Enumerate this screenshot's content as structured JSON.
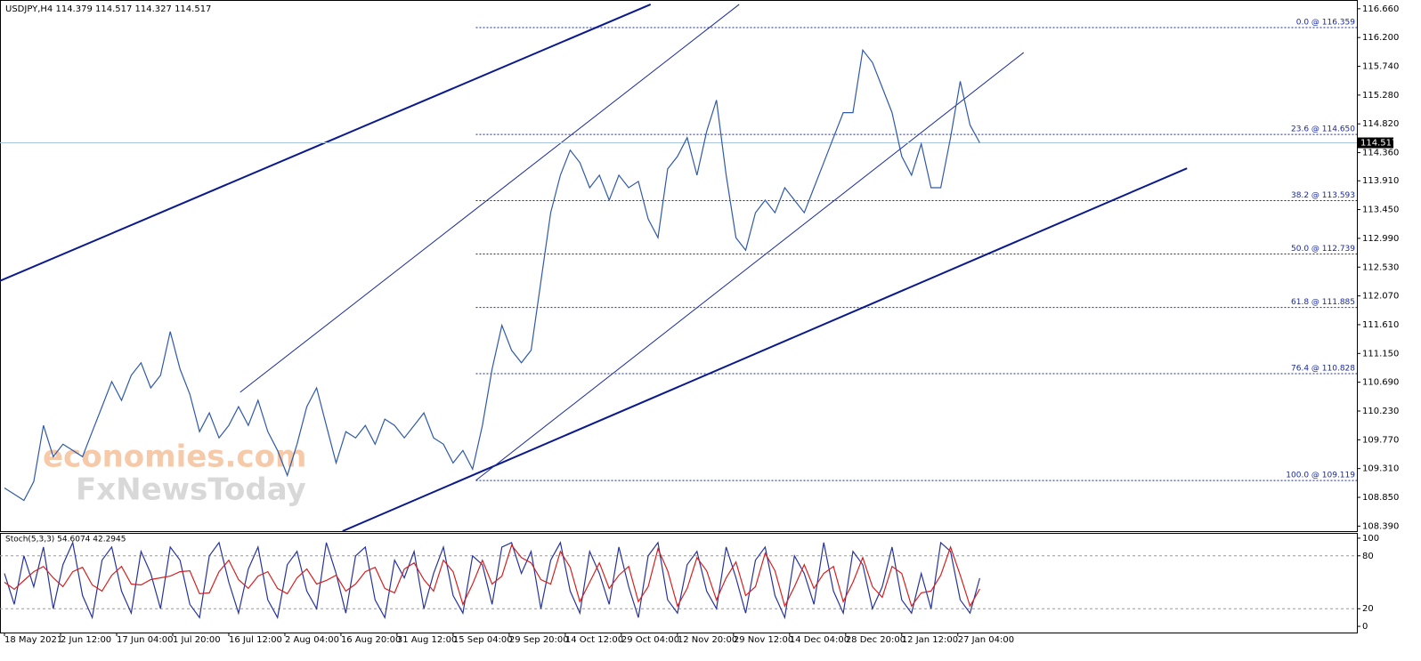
{
  "chart_data": [
    {
      "type": "line",
      "title": "USDJPY,H4  114.379 114.517 114.327 114.517",
      "watermark": [
        "economies.com",
        "FxNewsToday"
      ],
      "x": [
        0,
        12,
        24,
        36,
        48,
        60,
        72,
        84,
        96,
        108,
        120,
        132,
        144,
        156,
        168,
        180,
        192,
        204,
        216,
        228,
        240,
        252,
        264,
        276,
        288,
        300,
        312,
        324,
        336,
        348,
        360,
        372,
        384,
        396,
        408,
        420,
        432,
        444,
        456,
        468,
        480,
        492,
        504,
        516,
        528,
        540,
        552,
        564,
        576,
        588,
        600,
        612,
        624,
        636,
        648,
        660,
        672,
        684,
        696,
        708,
        720,
        732,
        744,
        756,
        768,
        780,
        792,
        804,
        816,
        828,
        840,
        852,
        864,
        876,
        888,
        900,
        912,
        924,
        936,
        948,
        960,
        972,
        984,
        996,
        1008,
        1020,
        1032,
        1044,
        1056,
        1068,
        1080,
        1092,
        1104,
        1116,
        1128,
        1140,
        1152,
        1164,
        1176,
        1188,
        1200
      ],
      "series": [
        {
          "color": "#2f5aa8",
          "values": [
            109.0,
            108.9,
            108.8,
            109.1,
            110.0,
            109.5,
            109.7,
            109.6,
            109.5,
            109.9,
            110.3,
            110.7,
            110.4,
            110.8,
            111.0,
            110.6,
            110.8,
            111.5,
            110.9,
            110.5,
            109.9,
            110.2,
            109.8,
            110.0,
            110.3,
            110.0,
            110.4,
            109.9,
            109.6,
            109.2,
            109.7,
            110.3,
            110.6,
            110.0,
            109.4,
            109.9,
            109.8,
            110.0,
            109.7,
            110.1,
            110.0,
            109.8,
            110.0,
            110.2,
            109.8,
            109.7,
            109.4,
            109.6,
            109.3,
            110.0,
            110.9,
            111.6,
            111.2,
            111.0,
            111.2,
            112.3,
            113.4,
            114.0,
            114.4,
            114.2,
            113.8,
            114.0,
            113.6,
            114.0,
            113.8,
            113.9,
            113.3,
            113.0,
            114.1,
            114.3,
            114.6,
            114.0,
            114.7,
            115.2,
            114.0,
            113.0,
            112.8,
            113.4,
            113.6,
            113.4,
            113.8,
            113.6,
            113.4,
            113.8,
            114.2,
            114.6,
            115.0,
            115.0,
            116.0,
            115.8,
            115.4,
            115.0,
            114.3,
            114.0,
            114.5,
            113.8,
            113.8,
            114.6,
            115.5,
            114.8,
            114.517
          ]
        }
      ],
      "last_price": 114.517,
      "fib_levels": [
        {
          "value": 116.359,
          "label": "0.0 @ 116.359"
        },
        {
          "value": 114.65,
          "label": "23.6 @ 114.650"
        },
        {
          "value": 113.593,
          "label": "38.2 @ 113.593"
        },
        {
          "value": 112.739,
          "label": "50.0 @ 112.739"
        },
        {
          "value": 111.885,
          "label": "61.8 @ 111.885"
        },
        {
          "value": 110.828,
          "label": "76.4 @ 110.828"
        },
        {
          "value": 109.119,
          "label": "100.0 @ 109.119"
        }
      ],
      "trendlines": [
        {
          "x": [
            -5.5,
            795
          ],
          "y": [
            112.31,
            116.73
          ],
          "width": 2,
          "color": "#0a1a8c"
        },
        {
          "x": [
            416,
            1455
          ],
          "y": [
            108.31,
            114.11
          ],
          "width": 2,
          "color": "#0a1a8c"
        },
        {
          "x": [
            290,
            904
          ],
          "y": [
            110.53,
            116.73
          ],
          "width": 1,
          "color": "#1a2a9c"
        },
        {
          "x": [
            580,
            1254
          ],
          "y": [
            109.12,
            115.96
          ],
          "width": 1,
          "color": "#1a2a9c"
        }
      ],
      "xlim": [
        -5.5,
        1664
      ],
      "ylim": [
        108.31,
        116.8
      ],
      "yticks": [
        {
          "value": 116.66,
          "label": "116.660"
        },
        {
          "value": 116.2,
          "label": "116.200"
        },
        {
          "value": 115.74,
          "label": "115.740"
        },
        {
          "value": 115.28,
          "label": "115.280"
        },
        {
          "value": 114.82,
          "label": "114.820"
        },
        {
          "value": 114.36,
          "label": "114.360"
        },
        {
          "value": 113.91,
          "label": "113.910"
        },
        {
          "value": 113.45,
          "label": "113.450"
        },
        {
          "value": 112.99,
          "label": "112.990"
        },
        {
          "value": 112.53,
          "label": "112.530"
        },
        {
          "value": 112.07,
          "label": "112.070"
        },
        {
          "value": 111.61,
          "label": "111.610"
        },
        {
          "value": 111.15,
          "label": "111.150"
        },
        {
          "value": 110.69,
          "label": "110.690"
        },
        {
          "value": 110.23,
          "label": "110.230"
        },
        {
          "value": 109.77,
          "label": "109.770"
        },
        {
          "value": 109.31,
          "label": "109.310"
        },
        {
          "value": 108.85,
          "label": "108.850"
        },
        {
          "value": 108.39,
          "label": "108.390"
        }
      ]
    },
    {
      "type": "line",
      "title": "Stoch(5,3,3) 54.6074 42.2945",
      "series": [
        {
          "color": "#27349a",
          "values": [
            60,
            25,
            80,
            45,
            90,
            20,
            70,
            95,
            35,
            10,
            75,
            90,
            40,
            15,
            85,
            60,
            20,
            90,
            75,
            25,
            10,
            80,
            95,
            50,
            15,
            65,
            90,
            30,
            10,
            70,
            85,
            40,
            20,
            95,
            60,
            15,
            80,
            90,
            30,
            10,
            75,
            55,
            85,
            20,
            60,
            90,
            35,
            15,
            80,
            70,
            25,
            90,
            95,
            60,
            85,
            20,
            75,
            95,
            40,
            15,
            85,
            60,
            25,
            90,
            45,
            10,
            80,
            95,
            30,
            15,
            70,
            85,
            40,
            20,
            90,
            55,
            15,
            75,
            90,
            35,
            10,
            80,
            60,
            25,
            95,
            40,
            15,
            85,
            70,
            20,
            45,
            90,
            30,
            15,
            60,
            20,
            95,
            85,
            30,
            15,
            54.6074
          ]
        },
        {
          "color": "#d62020",
          "values": [
            50,
            42,
            52,
            62,
            68,
            55,
            45,
            62,
            67,
            47,
            40,
            58,
            68,
            48,
            47,
            53,
            55,
            57,
            62,
            63,
            37,
            38,
            62,
            75,
            53,
            43,
            57,
            62,
            43,
            37,
            55,
            65,
            48,
            52,
            58,
            40,
            48,
            62,
            67,
            43,
            38,
            65,
            72,
            53,
            40,
            75,
            62,
            25,
            48,
            75,
            48,
            57,
            92,
            78,
            72,
            53,
            48,
            85,
            67,
            28,
            50,
            72,
            43,
            58,
            68,
            28,
            45,
            88,
            63,
            23,
            43,
            78,
            63,
            30,
            55,
            73,
            35,
            45,
            83,
            63,
            23,
            45,
            70,
            43,
            60,
            68,
            28,
            50,
            78,
            45,
            33,
            68,
            60,
            23,
            38,
            40,
            58,
            90,
            58,
            23,
            42.2945
          ]
        }
      ],
      "ylim": [
        -7,
        106
      ],
      "yticks": [
        100,
        80,
        20,
        0
      ],
      "levels": [
        80,
        20
      ],
      "xticks": [
        {
          "value": 0,
          "label": "18 May 2021"
        },
        {
          "value": 69,
          "label": "2 Jun 12:00"
        },
        {
          "value": 138,
          "label": "17 Jun 04:00"
        },
        {
          "value": 207,
          "label": "1 Jul 20:00"
        },
        {
          "value": 276,
          "label": "16 Jul 12:00"
        },
        {
          "value": 345,
          "label": "2 Aug 04:00"
        },
        {
          "value": 414,
          "label": "16 Aug 20:00"
        },
        {
          "value": 483,
          "label": "31 Aug 12:00"
        },
        {
          "value": 552,
          "label": "15 Sep 04:00"
        },
        {
          "value": 621,
          "label": "29 Sep 20:00"
        },
        {
          "value": 690,
          "label": "14 Oct 12:00"
        },
        {
          "value": 759,
          "label": "29 Oct 04:00"
        },
        {
          "value": 828,
          "label": "12 Nov 20:00"
        },
        {
          "value": 897,
          "label": "29 Nov 12:00"
        },
        {
          "value": 966,
          "label": "14 Dec 04:00"
        },
        {
          "value": 1035,
          "label": "28 Dec 20:00"
        },
        {
          "value": 1104,
          "label": "12 Jan 12:00"
        },
        {
          "value": 1173,
          "label": "27 Jan 04:00"
        }
      ]
    }
  ]
}
